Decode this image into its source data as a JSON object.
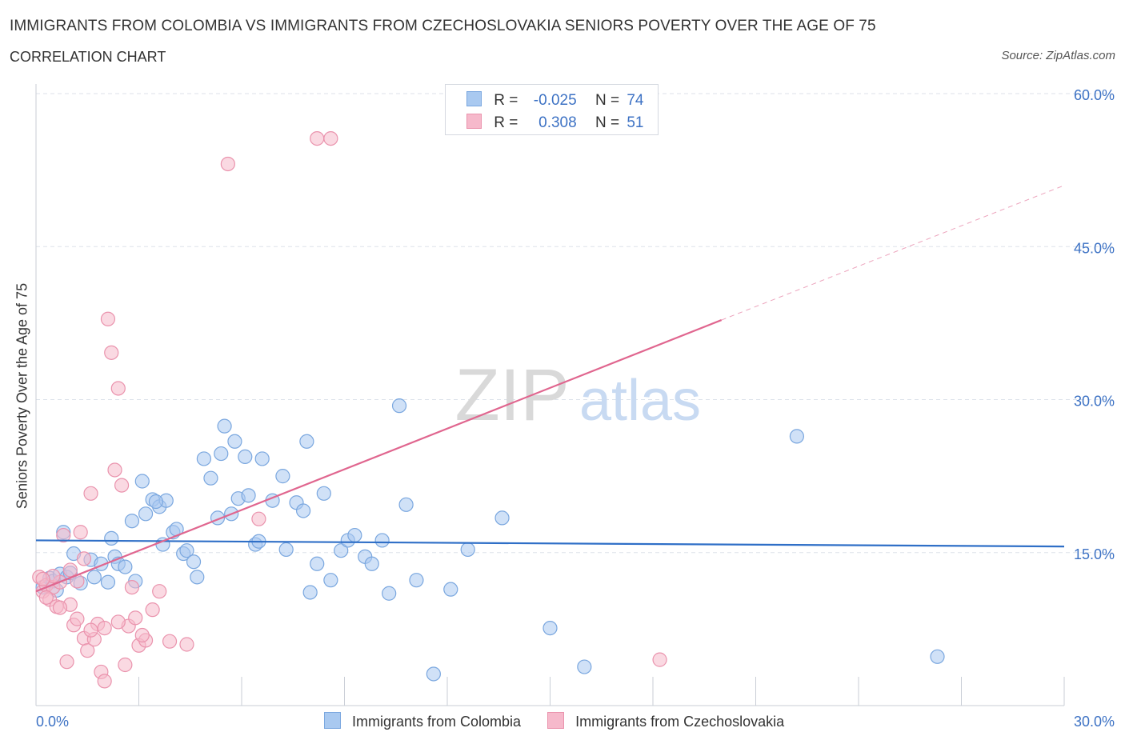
{
  "header": {
    "title": "IMMIGRANTS FROM COLOMBIA VS IMMIGRANTS FROM CZECHOSLOVAKIA SENIORS POVERTY OVER THE AGE OF 75",
    "subtitle": "CORRELATION CHART",
    "source": "Source: ZipAtlas.com"
  },
  "watermark": {
    "zip": "ZIP",
    "atlas": "atlas"
  },
  "colors": {
    "blue_fill": "#a9c9f0",
    "blue_stroke": "#7aa7df",
    "blue_line": "#2f6fc7",
    "pink_fill": "#f6b9cb",
    "pink_stroke": "#ea93ad",
    "pink_line": "#e0668f",
    "value_text": "#3d72c4",
    "grid": "#dde2ea"
  },
  "legend_stats": [
    {
      "r_label": "R =",
      "r_value": "-0.025",
      "n_label": "N =",
      "n_value": "74"
    },
    {
      "r_label": "R =",
      "r_value": "0.308",
      "n_label": "N =",
      "n_value": "51"
    }
  ],
  "chart_data": {
    "type": "scatter",
    "title": "IMMIGRANTS FROM COLOMBIA VS IMMIGRANTS FROM CZECHOSLOVAKIA SENIORS POVERTY OVER THE AGE OF 75",
    "xlabel": "",
    "ylabel": "Seniors Poverty Over the Age of 75",
    "xlim": [
      0,
      30
    ],
    "ylim": [
      0,
      60
    ],
    "x_tick_labels": [
      {
        "value": 0,
        "label": "0.0%"
      },
      {
        "value": 30,
        "label": "30.0%"
      }
    ],
    "y_tick_labels": [
      {
        "value": 15,
        "label": "15.0%"
      },
      {
        "value": 30,
        "label": "30.0%"
      },
      {
        "value": 45,
        "label": "45.0%"
      },
      {
        "value": 60,
        "label": "60.0%"
      }
    ],
    "legend_position": "bottom",
    "series": [
      {
        "name": "Immigrants from Colombia",
        "color": "#a9c9f0",
        "trend": {
          "x": [
            0,
            30
          ],
          "y": [
            16.2,
            15.6
          ],
          "dashed_beyond": null
        },
        "points": [
          [
            0.2,
            11.6
          ],
          [
            0.4,
            12.5
          ],
          [
            0.5,
            12.2
          ],
          [
            0.6,
            11.3
          ],
          [
            0.7,
            12.9
          ],
          [
            0.8,
            17.0
          ],
          [
            0.9,
            12.6
          ],
          [
            1.1,
            14.9
          ],
          [
            1.3,
            12.0
          ],
          [
            1.6,
            14.3
          ],
          [
            1.7,
            12.6
          ],
          [
            1.9,
            13.9
          ],
          [
            2.1,
            12.1
          ],
          [
            2.2,
            16.4
          ],
          [
            2.3,
            14.6
          ],
          [
            2.4,
            13.9
          ],
          [
            2.6,
            13.6
          ],
          [
            2.8,
            18.1
          ],
          [
            2.9,
            12.2
          ],
          [
            3.1,
            22.0
          ],
          [
            3.2,
            18.8
          ],
          [
            3.4,
            20.2
          ],
          [
            3.6,
            19.5
          ],
          [
            3.7,
            15.8
          ],
          [
            3.8,
            20.1
          ],
          [
            4.0,
            17.0
          ],
          [
            4.1,
            17.3
          ],
          [
            4.3,
            14.9
          ],
          [
            4.4,
            15.2
          ],
          [
            4.6,
            14.1
          ],
          [
            4.7,
            12.6
          ],
          [
            4.9,
            24.2
          ],
          [
            5.1,
            22.3
          ],
          [
            5.3,
            18.4
          ],
          [
            5.4,
            24.7
          ],
          [
            5.5,
            27.4
          ],
          [
            5.7,
            18.8
          ],
          [
            5.8,
            25.9
          ],
          [
            5.9,
            20.3
          ],
          [
            6.1,
            24.4
          ],
          [
            6.2,
            20.6
          ],
          [
            6.4,
            15.8
          ],
          [
            6.5,
            16.1
          ],
          [
            6.6,
            24.2
          ],
          [
            6.9,
            20.1
          ],
          [
            7.2,
            22.5
          ],
          [
            7.3,
            15.3
          ],
          [
            7.6,
            19.9
          ],
          [
            7.8,
            19.1
          ],
          [
            7.9,
            25.9
          ],
          [
            8.0,
            11.1
          ],
          [
            8.2,
            13.9
          ],
          [
            8.4,
            20.8
          ],
          [
            8.6,
            12.3
          ],
          [
            8.9,
            15.2
          ],
          [
            9.1,
            16.2
          ],
          [
            9.3,
            16.7
          ],
          [
            9.6,
            14.6
          ],
          [
            9.8,
            13.9
          ],
          [
            10.1,
            16.2
          ],
          [
            10.3,
            11.0
          ],
          [
            10.6,
            29.4
          ],
          [
            10.8,
            19.7
          ],
          [
            11.1,
            12.3
          ],
          [
            11.6,
            3.1
          ],
          [
            12.1,
            11.4
          ],
          [
            12.6,
            15.3
          ],
          [
            13.6,
            18.4
          ],
          [
            15.0,
            7.6
          ],
          [
            16.0,
            3.8
          ],
          [
            22.2,
            26.4
          ],
          [
            26.3,
            4.8
          ],
          [
            1.0,
            13.0
          ],
          [
            3.5,
            20.0
          ]
        ]
      },
      {
        "name": "Immigrants from Czechoslovakia",
        "color": "#f6b9cb",
        "trend": {
          "x": [
            0,
            20
          ],
          "y": [
            11.2,
            37.8
          ],
          "dash_x": [
            20,
            30
          ],
          "dash_y": [
            37.8,
            51.0
          ]
        },
        "points": [
          [
            0.1,
            12.6
          ],
          [
            0.2,
            11.2
          ],
          [
            0.3,
            11.8
          ],
          [
            0.4,
            10.4
          ],
          [
            0.5,
            11.6
          ],
          [
            0.6,
            9.7
          ],
          [
            0.7,
            12.1
          ],
          [
            0.8,
            16.7
          ],
          [
            0.9,
            4.3
          ],
          [
            1.0,
            9.9
          ],
          [
            1.1,
            7.9
          ],
          [
            1.2,
            8.5
          ],
          [
            1.3,
            17.0
          ],
          [
            1.4,
            6.6
          ],
          [
            1.5,
            5.4
          ],
          [
            1.6,
            20.8
          ],
          [
            1.7,
            6.5
          ],
          [
            1.8,
            8.0
          ],
          [
            1.9,
            3.3
          ],
          [
            2.0,
            7.6
          ],
          [
            2.1,
            37.9
          ],
          [
            2.2,
            34.6
          ],
          [
            2.3,
            23.1
          ],
          [
            2.4,
            31.1
          ],
          [
            2.5,
            21.6
          ],
          [
            2.6,
            4.0
          ],
          [
            2.7,
            7.8
          ],
          [
            2.8,
            11.6
          ],
          [
            2.9,
            8.6
          ],
          [
            3.0,
            5.9
          ],
          [
            3.2,
            6.4
          ],
          [
            3.4,
            9.4
          ],
          [
            3.6,
            11.2
          ],
          [
            3.9,
            6.3
          ],
          [
            4.4,
            6.0
          ],
          [
            5.6,
            53.1
          ],
          [
            6.5,
            18.3
          ],
          [
            8.2,
            55.6
          ],
          [
            8.6,
            55.6
          ],
          [
            18.2,
            4.5
          ],
          [
            0.3,
            10.6
          ],
          [
            0.5,
            12.7
          ],
          [
            0.7,
            9.6
          ],
          [
            1.0,
            13.3
          ],
          [
            1.2,
            12.2
          ],
          [
            1.4,
            14.4
          ],
          [
            1.6,
            7.4
          ],
          [
            2.0,
            2.4
          ],
          [
            2.4,
            8.2
          ],
          [
            3.1,
            6.9
          ],
          [
            0.2,
            12.4
          ]
        ]
      }
    ]
  }
}
